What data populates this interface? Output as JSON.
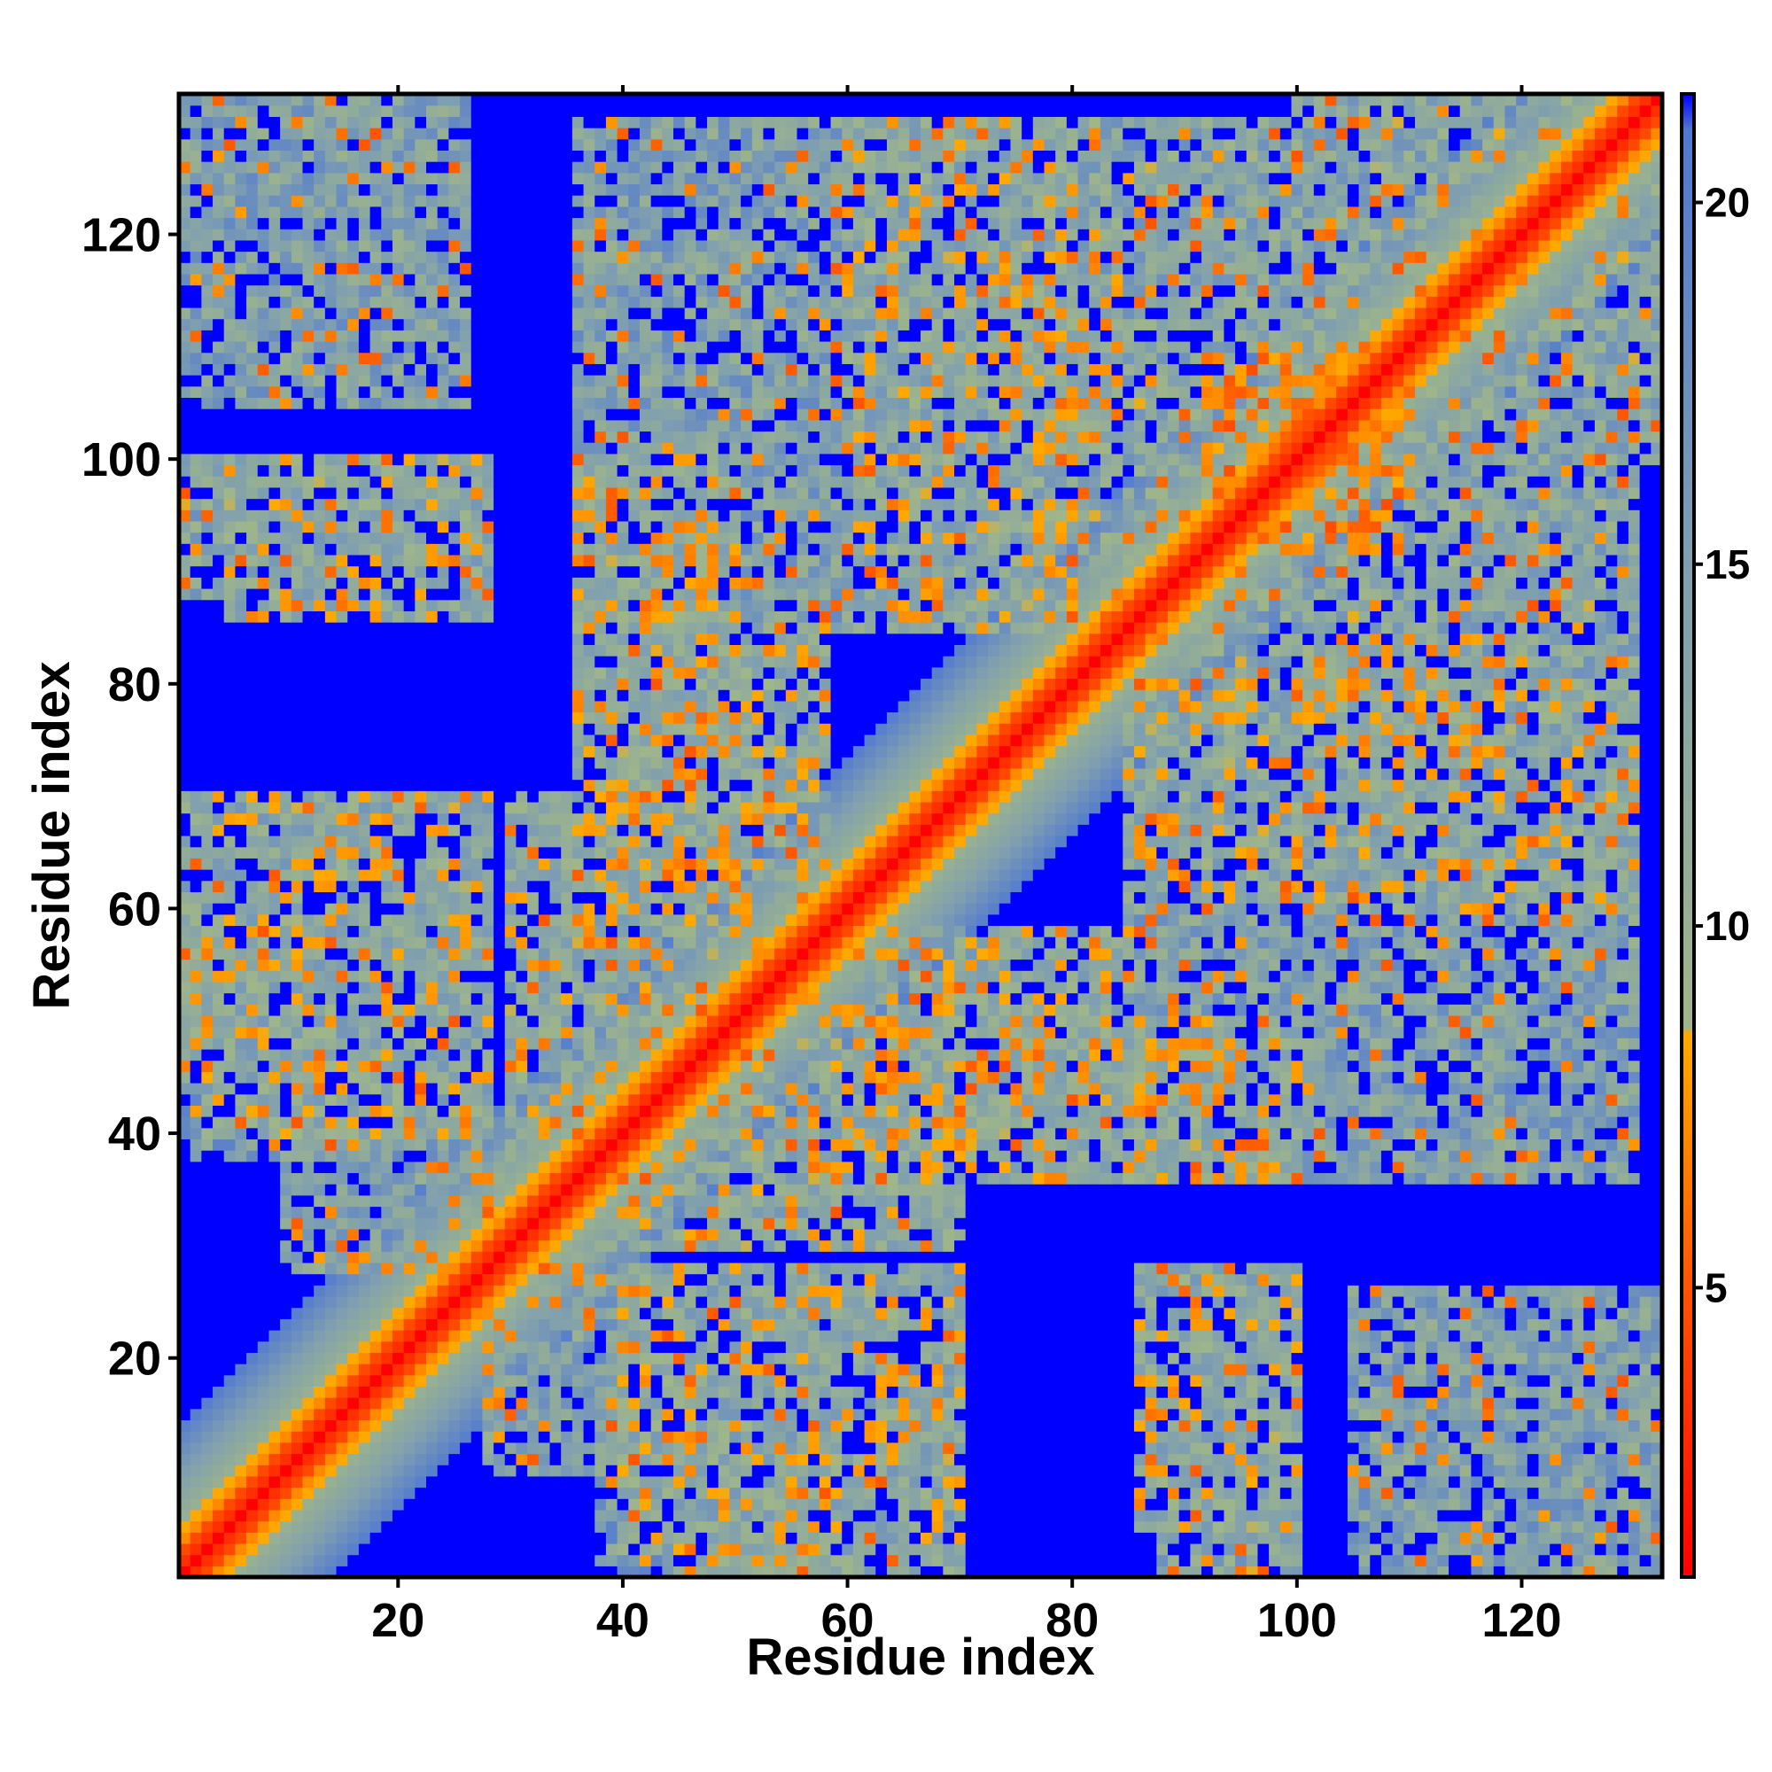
{
  "chart_data": {
    "type": "heatmap",
    "title": "",
    "xlabel": "Residue index",
    "ylabel": "Residue index",
    "n_residues": 132,
    "xlim": [
      1,
      132
    ],
    "ylim": [
      1,
      132
    ],
    "x_ticks": [
      20,
      40,
      60,
      80,
      100,
      120
    ],
    "y_ticks": [
      20,
      40,
      60,
      80,
      100,
      120
    ],
    "colorbar": {
      "range": [
        1,
        21.5
      ],
      "ticks": [
        5,
        10,
        15,
        20
      ],
      "stops": [
        {
          "value": 1,
          "color": "#ff0000"
        },
        {
          "value": 5,
          "color": "#ff5500"
        },
        {
          "value": 8.5,
          "color": "#ffaa00"
        },
        {
          "value": 8.6,
          "color": "#9fb58a"
        },
        {
          "value": 15,
          "color": "#7f9fb0"
        },
        {
          "value": 21,
          "color": "#5078d0"
        },
        {
          "value": 21.5,
          "color": "#0000ff"
        }
      ]
    },
    "diagonal_band": {
      "width": 13
    },
    "contact_regions": [
      {
        "x": [
          1,
          26
        ],
        "y": [
          105,
          132
        ],
        "level": 14
      },
      {
        "x": [
          1,
          25
        ],
        "y": [
          88,
          100
        ],
        "level": 13
      },
      {
        "x": [
          1,
          28
        ],
        "y": [
          45,
          70
        ],
        "level": 12
      },
      {
        "x": [
          1,
          28
        ],
        "y": [
          38,
          46
        ],
        "level": 15
      },
      {
        "x": [
          36,
          60
        ],
        "y": [
          85,
          130
        ],
        "level": 14
      },
      {
        "x": [
          36,
          58
        ],
        "y": [
          60,
          85
        ],
        "level": 12
      },
      {
        "x": [
          66,
          88
        ],
        "y": [
          90,
          130
        ],
        "level": 14
      },
      {
        "x": [
          74,
          84
        ],
        "y": [
          100,
          116
        ],
        "level": 11
      },
      {
        "x": [
          92,
          110
        ],
        "y": [
          95,
          108
        ],
        "level": 9
      },
      {
        "x": [
          85,
          130
        ],
        "y": [
          80,
          100
        ],
        "level": 13
      },
      {
        "x": [
          85,
          130
        ],
        "y": [
          60,
          80
        ],
        "level": 12
      },
      {
        "x": [
          60,
          100
        ],
        "y": [
          36,
          50
        ],
        "level": 11
      },
      {
        "x": [
          100,
          130
        ],
        "y": [
          40,
          50
        ],
        "level": 14
      },
      {
        "x": [
          40,
          68
        ],
        "y": [
          3,
          28
        ],
        "level": 12
      },
      {
        "x": [
          86,
          100
        ],
        "y": [
          5,
          28
        ],
        "level": 12
      },
      {
        "x": [
          112,
          130
        ],
        "y": [
          5,
          22
        ],
        "level": 15
      },
      {
        "x": [
          28,
          42
        ],
        "y": [
          10,
          36
        ],
        "level": 14
      },
      {
        "x": [
          40,
          70
        ],
        "y": [
          30,
          55
        ],
        "level": 12
      },
      {
        "x": [
          100,
          132
        ],
        "y": [
          100,
          132
        ],
        "level": 13
      }
    ]
  }
}
